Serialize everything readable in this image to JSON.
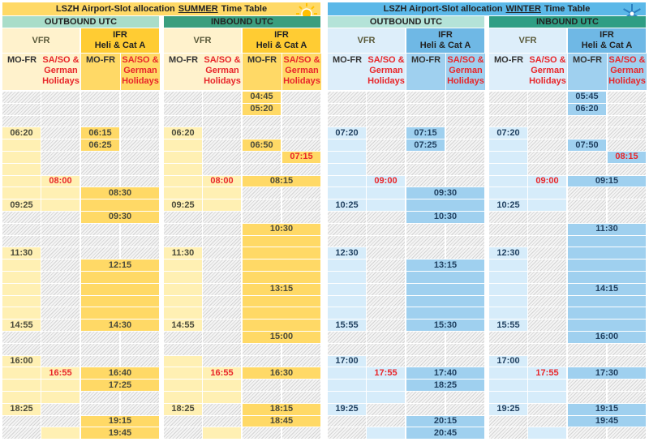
{
  "panels": [
    {
      "title": {
        "prefix": "LSZH Airport-Slot allocation",
        "season": "SUMMER",
        "suffix": "Time Table"
      },
      "directions": [
        {
          "label": "OUTBOUND UTC",
          "vfr": "VFR",
          "ifr": "IFR",
          "ifr_sub": "Heli & Cat A",
          "weekday": "MO-FR",
          "weekend": "SA/SO & German Holidays",
          "columns": [
            [
              null,
              null,
              null,
              "06:20",
              null,
              null,
              null,
              null,
              null,
              "09:25",
              null,
              null,
              null,
              "11:30",
              null,
              null,
              null,
              null,
              null,
              "14:55",
              null,
              null,
              "16:00",
              null,
              null,
              null,
              "18:25",
              null,
              null
            ],
            [
              null,
              null,
              null,
              null,
              null,
              null,
              null,
              "08:00",
              null,
              null,
              null,
              null,
              null,
              null,
              null,
              null,
              null,
              null,
              null,
              null,
              null,
              null,
              null,
              "16:55",
              null,
              null,
              null,
              null,
              null
            ],
            [
              null,
              null,
              null,
              "06:15",
              "06:25",
              null,
              null,
              null,
              "08:30",
              null,
              "09:30",
              null,
              null,
              null,
              "12:15",
              null,
              null,
              null,
              null,
              "14:30",
              null,
              null,
              null,
              "16:40",
              "17:25",
              null,
              null,
              "19:15",
              "19:45"
            ],
            [
              null,
              null,
              null,
              null,
              null,
              null,
              null,
              null,
              null,
              null,
              null,
              null,
              null,
              null,
              null,
              null,
              null,
              null,
              null,
              null,
              null,
              null,
              null,
              null,
              null,
              null,
              null,
              null,
              null
            ]
          ]
        },
        {
          "label": "INBOUND UTC",
          "vfr": "VFR",
          "ifr": "IFR",
          "ifr_sub": "Heli & Cat A",
          "weekday": "MO-FR",
          "weekend": "SA/SO & German Holidays",
          "columns": [
            [
              null,
              null,
              null,
              "06:20",
              null,
              null,
              null,
              null,
              null,
              "09:25",
              null,
              null,
              null,
              "11:30",
              null,
              null,
              null,
              null,
              null,
              "14:55",
              null,
              null,
              null,
              null,
              null,
              null,
              "18:25",
              null,
              null
            ],
            [
              null,
              null,
              null,
              null,
              null,
              null,
              null,
              "08:00",
              null,
              null,
              null,
              null,
              null,
              null,
              null,
              null,
              null,
              null,
              null,
              null,
              null,
              null,
              null,
              "16:55",
              null,
              null,
              null,
              null,
              null
            ],
            [
              "04:45",
              "05:20",
              null,
              null,
              "06:50",
              null,
              null,
              "08:15",
              null,
              null,
              null,
              "10:30",
              null,
              null,
              null,
              null,
              "13:15",
              null,
              null,
              null,
              "15:00",
              null,
              null,
              "16:30",
              null,
              null,
              "18:15",
              "18:45",
              null
            ],
            [
              null,
              null,
              null,
              null,
              null,
              "07:15",
              null,
              null,
              null,
              null,
              null,
              null,
              null,
              null,
              null,
              null,
              null,
              null,
              null,
              null,
              null,
              null,
              null,
              null,
              null,
              null,
              null,
              null,
              null
            ]
          ]
        }
      ]
    },
    {
      "title": {
        "prefix": "LSZH Airport-Slot allocation",
        "season": "WINTER",
        "suffix": "Time Table"
      },
      "directions": [
        {
          "label": "OUTBOUND UTC",
          "vfr": "VFR",
          "ifr": "IFR",
          "ifr_sub": "Heli & Cat A",
          "weekday": "MO-FR",
          "weekend": "SA/SO & German Holidays",
          "columns": [
            [
              null,
              null,
              null,
              "07:20",
              null,
              null,
              null,
              null,
              null,
              "10:25",
              null,
              null,
              null,
              "12:30",
              null,
              null,
              null,
              null,
              null,
              "15:55",
              null,
              null,
              "17:00",
              null,
              null,
              null,
              "19:25",
              null,
              null
            ],
            [
              null,
              null,
              null,
              null,
              null,
              null,
              null,
              "09:00",
              null,
              null,
              null,
              null,
              null,
              null,
              null,
              null,
              null,
              null,
              null,
              null,
              null,
              null,
              null,
              "17:55",
              null,
              null,
              null,
              null,
              null
            ],
            [
              null,
              null,
              null,
              "07:15",
              "07:25",
              null,
              null,
              null,
              "09:30",
              null,
              "10:30",
              null,
              null,
              null,
              "13:15",
              null,
              null,
              null,
              null,
              "15:30",
              null,
              null,
              null,
              "17:40",
              "18:25",
              null,
              null,
              "20:15",
              "20:45"
            ],
            [
              null,
              null,
              null,
              null,
              null,
              null,
              null,
              null,
              null,
              null,
              null,
              null,
              null,
              null,
              null,
              null,
              null,
              null,
              null,
              null,
              null,
              null,
              null,
              null,
              null,
              null,
              null,
              null,
              null
            ]
          ]
        },
        {
          "label": "INBOUND UTC",
          "vfr": "VFR",
          "ifr": "IFR",
          "ifr_sub": "Heli & Cat A",
          "weekday": "MO-FR",
          "weekend": "SA/SO & German Holidays",
          "columns": [
            [
              null,
              null,
              null,
              "07:20",
              null,
              null,
              null,
              null,
              null,
              "10:25",
              null,
              null,
              null,
              "12:30",
              null,
              null,
              null,
              null,
              null,
              "15:55",
              null,
              null,
              "17:00",
              null,
              null,
              null,
              "19:25",
              null,
              null
            ],
            [
              null,
              null,
              null,
              null,
              null,
              null,
              null,
              "09:00",
              null,
              null,
              null,
              null,
              null,
              null,
              null,
              null,
              null,
              null,
              null,
              null,
              null,
              null,
              null,
              "17:55",
              null,
              null,
              null,
              null,
              null
            ],
            [
              "05:45",
              "06:20",
              null,
              null,
              "07:50",
              null,
              null,
              "09:15",
              null,
              null,
              null,
              "11:30",
              null,
              null,
              null,
              null,
              "14:15",
              null,
              null,
              null,
              "16:00",
              null,
              null,
              "17:30",
              null,
              null,
              "19:15",
              "19:45",
              null
            ],
            [
              null,
              null,
              null,
              null,
              null,
              "08:15",
              null,
              null,
              null,
              null,
              null,
              null,
              null,
              null,
              null,
              null,
              null,
              null,
              null,
              null,
              null,
              null,
              null,
              null,
              null,
              null,
              null,
              null,
              null
            ]
          ]
        }
      ]
    }
  ]
}
